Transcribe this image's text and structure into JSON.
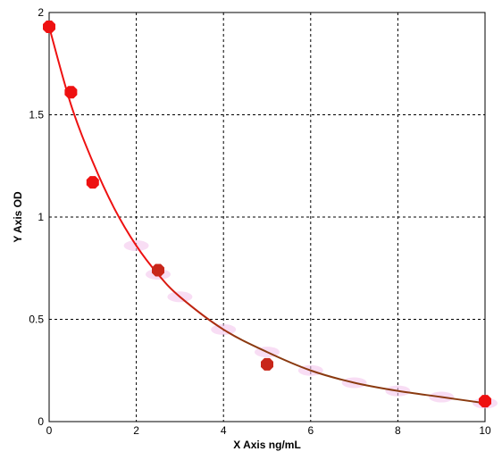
{
  "chart_data": {
    "type": "scatter",
    "title": "",
    "xlabel": "X Axis ng/mL",
    "ylabel": "Y Axis OD",
    "xlim": [
      0,
      10
    ],
    "ylim": [
      0,
      2
    ],
    "x_ticks": [
      "0",
      "2",
      "4",
      "6",
      "8",
      "10"
    ],
    "y_ticks": [
      "0",
      "0.5",
      "1",
      "1.5",
      "2"
    ],
    "grid": true,
    "legend": "none",
    "series": [
      {
        "x": [
          0,
          0.5,
          1,
          2.5,
          5,
          10
        ],
        "y": [
          1.93,
          1.61,
          1.17,
          0.74,
          0.28,
          0.1
        ]
      }
    ],
    "fit_curve": {
      "x": [
        0,
        0.5,
        1,
        1.5,
        2,
        2.5,
        3,
        4,
        5,
        6,
        7,
        8,
        9,
        10
      ],
      "y": [
        1.93,
        1.55,
        1.27,
        1.04,
        0.86,
        0.72,
        0.61,
        0.45,
        0.34,
        0.25,
        0.19,
        0.15,
        0.12,
        0.09
      ]
    },
    "colors": {
      "marker": "#ee1111",
      "curve": "#ee1111",
      "curve_end": "#8a3a10",
      "halo": "#f3c6ec"
    }
  }
}
